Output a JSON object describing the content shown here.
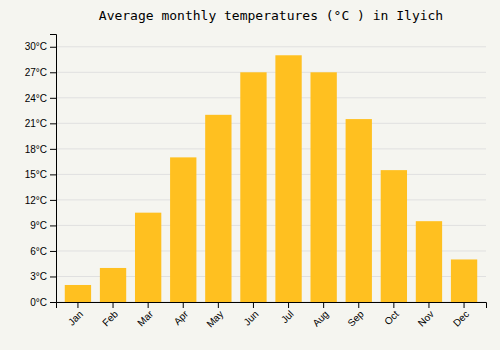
{
  "chart_data": {
    "type": "bar",
    "title": "Average monthly temperatures (°C ) in Ilyich",
    "categories": [
      "Jan",
      "Feb",
      "Mar",
      "Apr",
      "May",
      "Jun",
      "Jul",
      "Aug",
      "Sep",
      "Oct",
      "Nov",
      "Dec"
    ],
    "values": [
      2,
      4,
      10.5,
      17,
      22,
      27,
      29,
      27,
      21.5,
      15.5,
      9.5,
      5
    ],
    "color": "#FFC020",
    "ylim": [
      0,
      31.5
    ],
    "yticks": [
      {
        "value": 0,
        "label": "0°C"
      },
      {
        "value": 3,
        "label": "3°C"
      },
      {
        "value": 6,
        "label": "6°C"
      },
      {
        "value": 9,
        "label": "9°C"
      },
      {
        "value": 12,
        "label": "12°C"
      },
      {
        "value": 15,
        "label": "15°C"
      },
      {
        "value": 18,
        "label": "18°C"
      },
      {
        "value": 21,
        "label": "21°C"
      },
      {
        "value": 24,
        "label": "24°C"
      },
      {
        "value": 27,
        "label": "27°C"
      },
      {
        "value": 30,
        "label": "30°C"
      }
    ],
    "grid": true
  }
}
